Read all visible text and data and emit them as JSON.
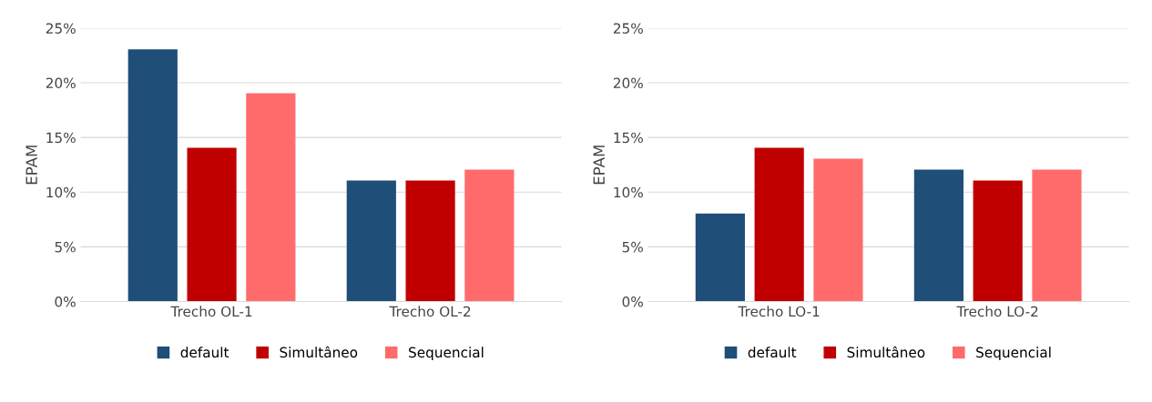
{
  "chart_data": [
    {
      "type": "bar",
      "ylabel": "EPAM",
      "categories": [
        "Trecho OL-1",
        "Trecho OL-2"
      ],
      "series": [
        {
          "name": "default",
          "color": "#1f4e79",
          "values": [
            23,
            11
          ]
        },
        {
          "name": "Simultâneo",
          "color": "#c00000",
          "values": [
            14,
            11
          ]
        },
        {
          "name": "Sequencial",
          "color": "#ff6b6b",
          "values": [
            19,
            12
          ]
        }
      ],
      "ylim": [
        0,
        25
      ],
      "yticks": [
        {
          "value": 0,
          "label": "0%"
        },
        {
          "value": 5,
          "label": "5%"
        },
        {
          "value": 10,
          "label": "10%"
        },
        {
          "value": 15,
          "label": "15%"
        },
        {
          "value": 20,
          "label": "20%"
        },
        {
          "value": 25,
          "label": "25%"
        }
      ],
      "grid": "y",
      "legend": "bottom"
    },
    {
      "type": "bar",
      "ylabel": "EPAM",
      "categories": [
        "Trecho LO-1",
        "Trecho LO-2"
      ],
      "series": [
        {
          "name": "default",
          "color": "#1f4e79",
          "values": [
            8,
            12
          ]
        },
        {
          "name": "Simultâneo",
          "color": "#c00000",
          "values": [
            14,
            11
          ]
        },
        {
          "name": "Sequencial",
          "color": "#ff6b6b",
          "values": [
            13,
            12
          ]
        }
      ],
      "ylim": [
        0,
        25
      ],
      "yticks": [
        {
          "value": 0,
          "label": "0%"
        },
        {
          "value": 5,
          "label": "5%"
        },
        {
          "value": 10,
          "label": "10%"
        },
        {
          "value": 15,
          "label": "15%"
        },
        {
          "value": 20,
          "label": "20%"
        },
        {
          "value": 25,
          "label": "25%"
        }
      ],
      "grid": "y",
      "legend": "bottom"
    }
  ]
}
